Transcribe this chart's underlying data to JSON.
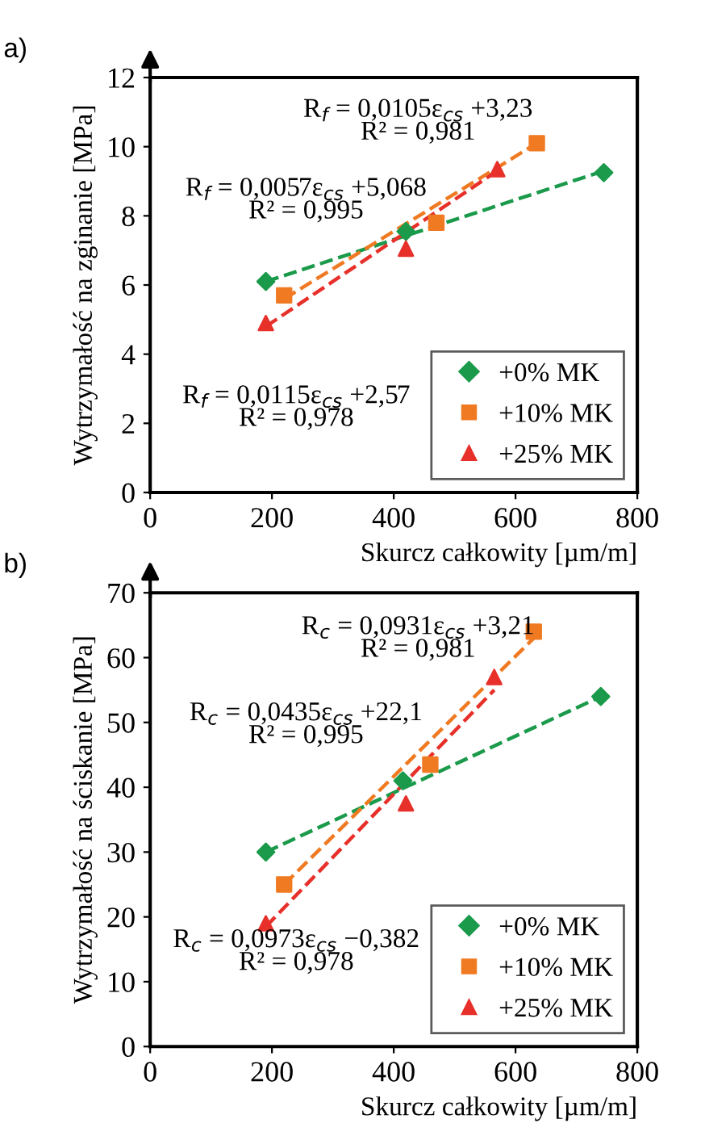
{
  "chart_data": [
    {
      "type": "scatter",
      "title": "a)",
      "xlabel": "Skurcz całkowity [µm/m]",
      "ylabel": "Wytrzymałość na zginanie [MPa]",
      "xlim": [
        0,
        800
      ],
      "xticks": [
        0,
        200,
        400,
        600,
        800
      ],
      "ylim": [
        0,
        12
      ],
      "yticks": [
        0,
        2,
        4,
        6,
        8,
        10,
        12
      ],
      "grid": false,
      "legend": "bottom right",
      "annotations": [
        "R$_{f}$ = 0,0105ε$_{cs}$ +3,23\nR² = 0,981",
        "R$_{f}$ = 0,0057ε$_{cs}$ +5,068\nR² = 0,995",
        "R$_{f}$ = 0,0115ε$_{cs}$ +2,57\nR² = 0,978"
      ],
      "series": [
        {
          "name": "+0% MK",
          "color": "#1a9a4a",
          "marker": "diamond",
          "x": [
            190,
            420,
            745
          ],
          "values": [
            6.1,
            7.55,
            9.25
          ]
        },
        {
          "name": "+10% MK",
          "color": "#f07a22",
          "marker": "square",
          "x": [
            220,
            470,
            635
          ],
          "values": [
            5.7,
            7.8,
            10.1
          ]
        },
        {
          "name": "+25% MK",
          "color": "#e8302a",
          "marker": "triangle",
          "x": [
            190,
            420,
            570
          ],
          "values": [
            4.9,
            7.05,
            9.35
          ]
        },
        {
          "type": "line",
          "color": "#1a9a4a",
          "line_style": "dashed",
          "marker": "none",
          "x": [
            190,
            745
          ],
          "values": [
            6.1,
            9.3
          ]
        },
        {
          "type": "line",
          "color": "#f07a22",
          "line_style": "dashed",
          "marker": "none",
          "x": [
            220,
            635
          ],
          "values": [
            5.6,
            10.1
          ]
        },
        {
          "type": "line",
          "color": "#e8302a",
          "line_style": "dashed",
          "marker": "none",
          "x": [
            190,
            570
          ],
          "values": [
            4.8,
            9.3
          ]
        }
      ]
    },
    {
      "type": "scatter",
      "title": "b)",
      "xlabel": "Skurcz całkowity [µm/m]",
      "ylabel": "Wytrzymałość na ściskanie [MPa]",
      "xlim": [
        0,
        800
      ],
      "xticks": [
        0,
        200,
        400,
        600,
        800
      ],
      "ylim": [
        0,
        70
      ],
      "yticks": [
        0,
        10,
        20,
        30,
        40,
        50,
        60,
        70
      ],
      "grid": false,
      "legend": "bottom right",
      "annotations": [
        "R$_{c}$ = 0,0931ε$_{cs}$ +3,21\nR² = 0,981",
        "R$_{c}$ = 0,0435ε$_{cs}$ +22,1\nR² = 0,995",
        "R$_{c}$ = 0,0973ε$_{cs}$ −0,382\nR² = 0,978"
      ],
      "series": [
        {
          "name": "+0% MK",
          "color": "#1a9a4a",
          "marker": "diamond",
          "x": [
            190,
            415,
            740
          ],
          "values": [
            30,
            41,
            54
          ]
        },
        {
          "name": "+10% MK",
          "color": "#f07a22",
          "marker": "square",
          "x": [
            220,
            460,
            630
          ],
          "values": [
            25,
            43.5,
            64
          ]
        },
        {
          "name": "+25% MK",
          "color": "#e8302a",
          "marker": "triangle",
          "x": [
            190,
            420,
            565
          ],
          "values": [
            19,
            37.5,
            57
          ]
        },
        {
          "type": "line",
          "color": "#1a9a4a",
          "line_style": "dashed",
          "marker": "none",
          "x": [
            190,
            740
          ],
          "values": [
            30,
            54
          ]
        },
        {
          "type": "line",
          "color": "#f07a22",
          "line_style": "dashed",
          "marker": "none",
          "x": [
            220,
            630
          ],
          "values": [
            25,
            63
          ]
        },
        {
          "type": "line",
          "color": "#e8302a",
          "line_style": "dashed",
          "marker": "none",
          "x": [
            190,
            565
          ],
          "values": [
            18.5,
            55
          ]
        }
      ]
    }
  ]
}
